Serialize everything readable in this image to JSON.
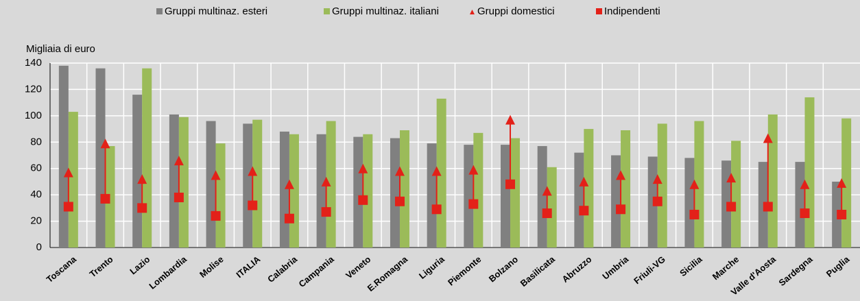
{
  "chart_data": {
    "type": "bar",
    "y_label": "Migliaia di euro",
    "categories": [
      "Toscana",
      "Trento",
      "Lazio",
      "Lombardia",
      "Molise",
      "ITALIA",
      "Calabria",
      "Campania",
      "Veneto",
      "E.Romagna",
      "Liguria",
      "Piemonte",
      "Bolzano",
      "Basilicata",
      "Abruzzo",
      "Umbria",
      "Friuli-VG",
      "Sicilia",
      "Marche",
      "Valle d'Aosta",
      "Sardegna",
      "Puglia"
    ],
    "series": [
      {
        "name": "Gruppi multinaz. esteri",
        "color": "#808080",
        "values": [
          138,
          136,
          116,
          101,
          96,
          94,
          88,
          86,
          84,
          83,
          79,
          78,
          78,
          77,
          72,
          70,
          69,
          68,
          66,
          65,
          65,
          50
        ]
      },
      {
        "name": "Gruppi multinaz. italiani",
        "color": "#9bbb59",
        "values": [
          103,
          77,
          136,
          99,
          79,
          97,
          86,
          96,
          86,
          89,
          113,
          87,
          83,
          61,
          90,
          89,
          94,
          96,
          81,
          101,
          114,
          98
        ]
      },
      {
        "name": "Gruppi domestici",
        "color": "#e32119",
        "marker": "triangle",
        "values": [
          57,
          79,
          52,
          66,
          55,
          58,
          48,
          50,
          60,
          58,
          58,
          59,
          97,
          43,
          50,
          55,
          52,
          48,
          53,
          83,
          48,
          49
        ]
      },
      {
        "name": "Indipendenti",
        "color": "#e32119",
        "marker": "square",
        "values": [
          31,
          37,
          30,
          38,
          24,
          32,
          22,
          27,
          36,
          35,
          29,
          33,
          48,
          26,
          28,
          29,
          35,
          25,
          31,
          31,
          26,
          25
        ]
      }
    ],
    "ylim": [
      0,
      140
    ],
    "yticks": [
      0,
      20,
      40,
      60,
      80,
      100,
      120,
      140
    ],
    "grid": true
  }
}
